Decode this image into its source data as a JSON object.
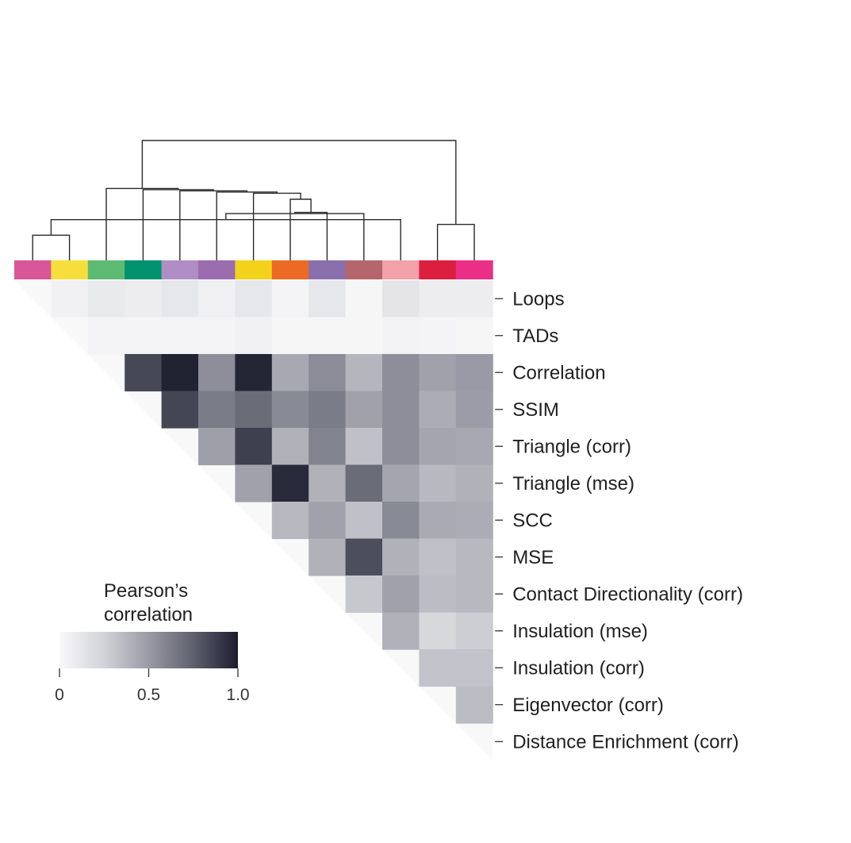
{
  "chart_data": {
    "type": "heatmap",
    "title": "",
    "layout": "upper-triangle clustered correlation matrix with dendrogram",
    "row_labels": [
      "Loops",
      "TADs",
      "Correlation",
      "SSIM",
      "Triangle (corr)",
      "Triangle (mse)",
      "SCC",
      "MSE",
      "Contact Directionality (corr)",
      "Insulation (mse)",
      "Insulation (corr)",
      "Eigenvector (corr)",
      "Distance Enrichment (corr)"
    ],
    "column_colors": [
      "#d9559a",
      "#f6df3c",
      "#5dba73",
      "#00916f",
      "#b08dc4",
      "#9b6cae",
      "#f2d21a",
      "#ec6a23",
      "#8a6fae",
      "#b5666d",
      "#f2a1a9",
      "#dd1f3f",
      "#ec2f86"
    ],
    "matrix": [
      [
        null,
        0.05,
        0.1,
        0.08,
        0.12,
        0.06,
        0.12,
        0.03,
        0.12,
        0.02,
        0.13,
        0.08,
        0.08
      ],
      [
        null,
        null,
        0.03,
        0.03,
        0.03,
        0.03,
        0.05,
        0.02,
        0.02,
        0.02,
        0.04,
        0.03,
        0.02
      ],
      [
        null,
        null,
        null,
        0.84,
        0.98,
        0.55,
        0.97,
        0.44,
        0.56,
        0.38,
        0.55,
        0.47,
        0.5
      ],
      [
        null,
        null,
        null,
        null,
        0.85,
        0.63,
        0.7,
        0.57,
        0.63,
        0.47,
        0.55,
        0.42,
        0.49
      ],
      [
        null,
        null,
        null,
        null,
        null,
        0.48,
        0.87,
        0.4,
        0.6,
        0.33,
        0.55,
        0.45,
        0.44
      ],
      [
        null,
        null,
        null,
        null,
        null,
        null,
        0.47,
        0.95,
        0.4,
        0.7,
        0.45,
        0.37,
        0.4
      ],
      [
        null,
        null,
        null,
        null,
        null,
        null,
        null,
        0.37,
        0.47,
        0.33,
        0.57,
        0.43,
        0.42
      ],
      [
        null,
        null,
        null,
        null,
        null,
        null,
        null,
        null,
        0.4,
        0.82,
        0.4,
        0.33,
        0.37
      ],
      [
        null,
        null,
        null,
        null,
        null,
        null,
        null,
        null,
        null,
        0.3,
        0.47,
        0.35,
        0.37
      ],
      [
        null,
        null,
        null,
        null,
        null,
        null,
        null,
        null,
        null,
        null,
        0.4,
        0.22,
        0.27
      ],
      [
        null,
        null,
        null,
        null,
        null,
        null,
        null,
        null,
        null,
        null,
        null,
        0.32,
        0.32
      ],
      [
        null,
        null,
        null,
        null,
        null,
        null,
        null,
        null,
        null,
        null,
        null,
        null,
        0.35
      ],
      [
        null,
        null,
        null,
        null,
        null,
        null,
        null,
        null,
        null,
        null,
        null,
        null,
        null
      ]
    ],
    "dendrogram": {
      "links": [
        {
          "a": 0,
          "b": 1,
          "height": 0.21
        },
        {
          "a": 11,
          "b": 12,
          "height": 0.3
        },
        {
          "a": 10,
          "b": 13,
          "height": 0.34
        },
        {
          "a": 9,
          "b": 15,
          "height": 0.39
        },
        {
          "a": 8,
          "b": 16,
          "height": 0.4
        },
        {
          "a": 7,
          "b": 17,
          "height": 0.51
        },
        {
          "a": 6,
          "b": 18,
          "height": 0.56
        },
        {
          "a": 5,
          "b": 19,
          "height": 0.57
        },
        {
          "a": 4,
          "b": 20,
          "height": 0.58
        },
        {
          "a": 3,
          "b": 21,
          "height": 0.59
        },
        {
          "a": 2,
          "b": 22,
          "height": 0.6
        },
        {
          "a": 14,
          "b": 23,
          "height": 1.0
        }
      ]
    },
    "colorbar": {
      "title_lines": [
        "Pearson’s",
        "correlation"
      ],
      "ticks": [
        0,
        0.5,
        1.0
      ],
      "tick_labels": [
        "0",
        "0.5",
        "1.0"
      ],
      "range": [
        0,
        1.0
      ],
      "colors": [
        "#f9f9fa",
        "#d2d3d8",
        "#999aa5",
        "#5e606d",
        "#1c1e2d"
      ]
    }
  }
}
